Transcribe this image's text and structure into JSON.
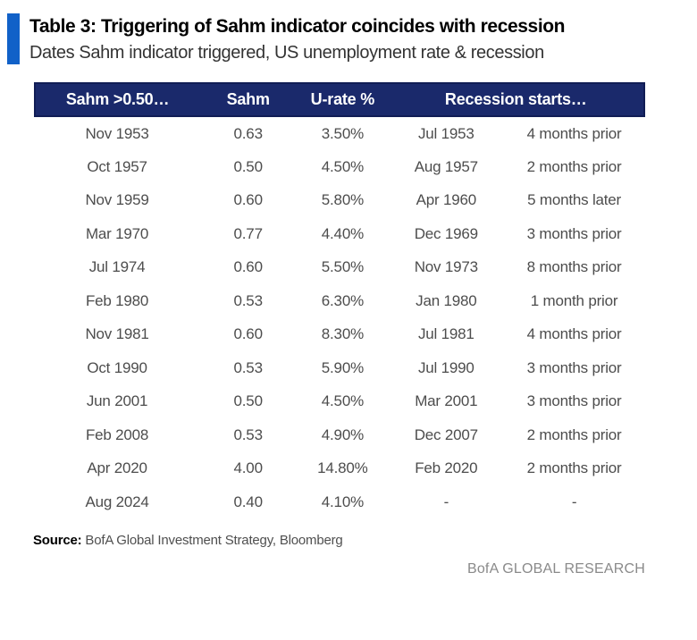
{
  "header": {
    "title": "Table 3: Triggering of Sahm indicator coincides with recession",
    "subtitle": "Dates Sahm indicator triggered, US unemployment rate & recession"
  },
  "colors": {
    "accent_blue": "#1161C8",
    "header_navy": "#1A296B",
    "header_border": "#111D55",
    "body_text": "#4D4D4D",
    "footer_gray": "#8A8A8A"
  },
  "table": {
    "headers": [
      "Sahm >0.50…",
      "Sahm",
      "U-rate %",
      "Recession starts…"
    ],
    "rows": [
      [
        "Nov 1953",
        "0.63",
        "3.50%",
        "Jul 1953",
        "4 months prior"
      ],
      [
        "Oct 1957",
        "0.50",
        "4.50%",
        "Aug 1957",
        "2 months prior"
      ],
      [
        "Nov 1959",
        "0.60",
        "5.80%",
        "Apr 1960",
        "5 months later"
      ],
      [
        "Mar 1970",
        "0.77",
        "4.40%",
        "Dec 1969",
        "3 months prior"
      ],
      [
        "Jul 1974",
        "0.60",
        "5.50%",
        "Nov 1973",
        "8 months prior"
      ],
      [
        "Feb 1980",
        "0.53",
        "6.30%",
        "Jan 1980",
        "1 month prior"
      ],
      [
        "Nov 1981",
        "0.60",
        "8.30%",
        "Jul 1981",
        "4 months prior"
      ],
      [
        "Oct 1990",
        "0.53",
        "5.90%",
        "Jul 1990",
        "3 months prior"
      ],
      [
        "Jun 2001",
        "0.50",
        "4.50%",
        "Mar 2001",
        "3 months prior"
      ],
      [
        "Feb 2008",
        "0.53",
        "4.90%",
        "Dec 2007",
        "2 months prior"
      ],
      [
        "Apr 2020",
        "4.00",
        "14.80%",
        "Feb 2020",
        "2 months prior"
      ],
      [
        "Aug 2024",
        "0.40",
        "4.10%",
        "-",
        "-"
      ]
    ]
  },
  "footer": {
    "source_label": "Source:",
    "source_text": " BofA Global Investment Strategy, Bloomberg",
    "brand": "BofA GLOBAL RESEARCH"
  },
  "chart_data": {
    "type": "table",
    "title": "Table 3: Triggering of Sahm indicator coincides with recession",
    "subtitle": "Dates Sahm indicator triggered, US unemployment rate & recession",
    "columns": [
      "Sahm >0.50…",
      "Sahm",
      "U-rate %",
      "Recession starts…",
      ""
    ],
    "header_note": "Column 'Recession starts…' spans the last two columns",
    "rows": [
      [
        "Nov 1953",
        0.63,
        "3.50%",
        "Jul 1953",
        "4 months prior"
      ],
      [
        "Oct 1957",
        0.5,
        "4.50%",
        "Aug 1957",
        "2 months prior"
      ],
      [
        "Nov 1959",
        0.6,
        "5.80%",
        "Apr 1960",
        "5 months later"
      ],
      [
        "Mar 1970",
        0.77,
        "4.40%",
        "Dec 1969",
        "3 months prior"
      ],
      [
        "Jul 1974",
        0.6,
        "5.50%",
        "Nov 1973",
        "8 months prior"
      ],
      [
        "Feb 1980",
        0.53,
        "6.30%",
        "Jan 1980",
        "1 month prior"
      ],
      [
        "Nov 1981",
        0.6,
        "8.30%",
        "Jul 1981",
        "4 months prior"
      ],
      [
        "Oct 1990",
        0.53,
        "5.90%",
        "Jul 1990",
        "3 months prior"
      ],
      [
        "Jun 2001",
        0.5,
        "4.50%",
        "Mar 2001",
        "3 months prior"
      ],
      [
        "Feb 2008",
        0.53,
        "4.90%",
        "Dec 2007",
        "2 months prior"
      ],
      [
        "Apr 2020",
        4.0,
        "14.80%",
        "Feb 2020",
        "2 months prior"
      ],
      [
        "Aug 2024",
        0.4,
        "4.10%",
        "-",
        "-"
      ]
    ],
    "source": "BofA Global Investment Strategy, Bloomberg"
  }
}
